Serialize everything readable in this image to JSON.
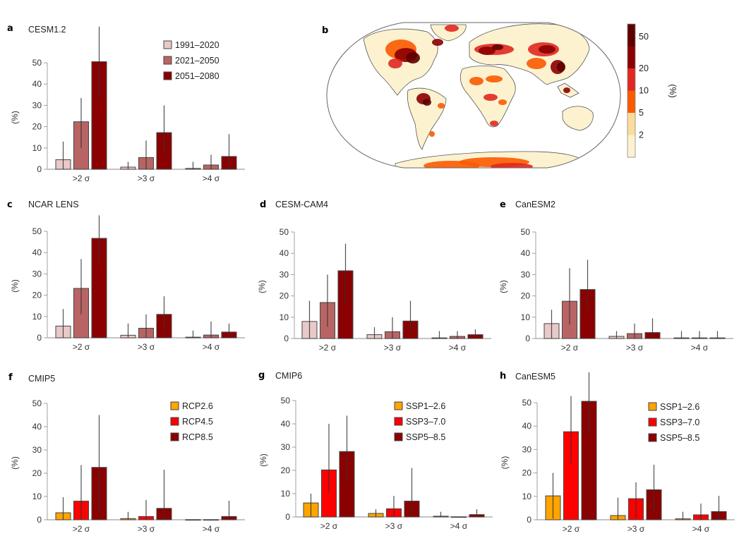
{
  "colors": {
    "period": [
      "#e8c9c9",
      "#b96464",
      "#8b0000"
    ],
    "scenario": [
      "#ffa500",
      "#ff0000",
      "#8b0000"
    ],
    "colorbar": [
      "#fdf2d0",
      "#fcdc9d",
      "#fb5a00",
      "#e0281f",
      "#8b0000",
      "#5e0000"
    ],
    "axis": "#a0a0a0",
    "errorbar": "#333333"
  },
  "chart_data": [
    {
      "id": "a",
      "type": "bar",
      "letter": "a",
      "title": "CESM1.2",
      "ylabel": "(%)",
      "ylim": [
        0,
        50
      ],
      "yticks": [
        0,
        10,
        20,
        30,
        40,
        50
      ],
      "categories": [
        ">2 σ",
        ">3 σ",
        ">4 σ"
      ],
      "palette": "period",
      "legend": "top-right",
      "series": [
        {
          "name": "1991–2020",
          "values": [
            4.5,
            1.0,
            0.4
          ],
          "err_low": [
            0,
            0,
            0
          ],
          "err_high": [
            13,
            3.5,
            3.5
          ]
        },
        {
          "name": "2021–2050",
          "values": [
            22.3,
            5.5,
            2.0
          ],
          "err_low": [
            10,
            0,
            0
          ],
          "err_high": [
            33.5,
            13.5,
            6.8
          ]
        },
        {
          "name": "2051–2080",
          "values": [
            50.5,
            17.2,
            6.0
          ],
          "err_low": [
            33,
            7,
            0
          ],
          "err_high": [
            67,
            30,
            16.5
          ]
        }
      ]
    },
    {
      "id": "c",
      "type": "bar",
      "letter": "c",
      "title": "NCAR LENS",
      "ylabel": "(%)",
      "ylim": [
        0,
        50
      ],
      "yticks": [
        0,
        10,
        20,
        30,
        40,
        50
      ],
      "categories": [
        ">2 σ",
        ">3 σ",
        ">4 σ"
      ],
      "palette": "period",
      "legend": "none",
      "series": [
        {
          "name": "1991–2020",
          "values": [
            5.5,
            1.2,
            0.3
          ],
          "err_low": [
            0,
            0,
            0
          ],
          "err_high": [
            13.5,
            6.7,
            3.4
          ]
        },
        {
          "name": "2021–2050",
          "values": [
            23.2,
            4.5,
            1.3
          ],
          "err_low": [
            11,
            0,
            0
          ],
          "err_high": [
            37,
            11,
            7.7
          ]
        },
        {
          "name": "2051–2080",
          "values": [
            46.7,
            11.0,
            2.7
          ],
          "err_low": [
            35.5,
            2,
            0
          ],
          "err_high": [
            57.5,
            19.5,
            6.7
          ]
        }
      ]
    },
    {
      "id": "d",
      "type": "bar",
      "letter": "d",
      "title": "CESM-CAM4",
      "ylabel": "(%)",
      "ylim": [
        0,
        50
      ],
      "yticks": [
        0,
        10,
        20,
        30,
        40,
        50
      ],
      "categories": [
        ">2 σ",
        ">3 σ",
        ">4 σ"
      ],
      "palette": "period",
      "legend": "none",
      "series": [
        {
          "name": "1991–2020",
          "values": [
            8.0,
            1.8,
            0.3
          ],
          "err_low": [
            0,
            0,
            0
          ],
          "err_high": [
            17.7,
            5.3,
            3.5
          ]
        },
        {
          "name": "2021–2050",
          "values": [
            16.9,
            3.2,
            1.0
          ],
          "err_low": [
            5.5,
            0,
            0
          ],
          "err_high": [
            30,
            10,
            3.5
          ]
        },
        {
          "name": "2051–2080",
          "values": [
            31.8,
            8.2,
            1.8
          ],
          "err_low": [
            15.5,
            3,
            0
          ],
          "err_high": [
            44.5,
            17.7,
            4.3
          ]
        }
      ]
    },
    {
      "id": "e",
      "type": "bar",
      "letter": "e",
      "title": "CanESM2",
      "ylabel": "(%)",
      "ylim": [
        0,
        50
      ],
      "yticks": [
        0,
        10,
        20,
        30,
        40,
        50
      ],
      "categories": [
        ">2 σ",
        ">3 σ",
        ">4 σ"
      ],
      "palette": "period",
      "legend": "none",
      "series": [
        {
          "name": "1991–2020",
          "values": [
            7.0,
            1.0,
            0.3
          ],
          "err_low": [
            0,
            0,
            0
          ],
          "err_high": [
            13.5,
            3.5,
            3.5
          ]
        },
        {
          "name": "2021–2050",
          "values": [
            17.5,
            2.3,
            0.3
          ],
          "err_low": [
            6.5,
            0,
            0
          ],
          "err_high": [
            33,
            7,
            3.5
          ]
        },
        {
          "name": "2051–2080",
          "values": [
            23.0,
            2.8,
            0.3
          ],
          "err_low": [
            13,
            0,
            0
          ],
          "err_high": [
            37,
            9.5,
            3.5
          ]
        }
      ]
    },
    {
      "id": "f",
      "type": "bar",
      "letter": "f",
      "title": "CMIP5",
      "ylabel": "(%)",
      "ylim": [
        0,
        50
      ],
      "yticks": [
        0,
        10,
        20,
        30,
        40,
        50
      ],
      "categories": [
        ">2 σ",
        ">3 σ",
        ">4 σ"
      ],
      "palette": "scenario",
      "legend": "top-right",
      "series": [
        {
          "name": "RCP2.6",
          "values": [
            3.0,
            0.5,
            0.05
          ],
          "err_low": [
            0,
            0,
            0
          ],
          "err_high": [
            9.7,
            3.4,
            0.05
          ]
        },
        {
          "name": "RCP4.5",
          "values": [
            8.0,
            1.4,
            0.05
          ],
          "err_low": [
            0,
            0,
            0
          ],
          "err_high": [
            23.5,
            8.5,
            0.05
          ]
        },
        {
          "name": "RCP8.5",
          "values": [
            22.5,
            4.9,
            1.4
          ],
          "err_low": [
            3,
            0,
            0
          ],
          "err_high": [
            45,
            21.5,
            8.2
          ]
        }
      ]
    },
    {
      "id": "g",
      "type": "bar",
      "letter": "g",
      "title": "CMIP6",
      "ylabel": "(%)",
      "ylim": [
        0,
        50
      ],
      "yticks": [
        0,
        10,
        20,
        30,
        40,
        50
      ],
      "categories": [
        ">2 σ",
        ">3 σ",
        ">4 σ"
      ],
      "palette": "scenario",
      "legend": "top-right",
      "series": [
        {
          "name": "SSP1–2.6",
          "values": [
            6.0,
            1.5,
            0.3
          ],
          "err_low": [
            0,
            0,
            0
          ],
          "err_high": [
            10,
            3.3,
            2.2
          ]
        },
        {
          "name": "SSP3–7.0",
          "values": [
            20.2,
            3.5,
            0.05
          ],
          "err_low": [
            11,
            0,
            0
          ],
          "err_high": [
            40,
            9,
            0.05
          ]
        },
        {
          "name": "SSP5–8.5",
          "values": [
            28.1,
            6.8,
            1.0
          ],
          "err_low": [
            14.5,
            1,
            0
          ],
          "err_high": [
            43.5,
            21,
            3.3
          ]
        }
      ]
    },
    {
      "id": "h",
      "type": "bar",
      "letter": "h",
      "title": "CanESM5",
      "ylabel": "(%)",
      "ylim": [
        0,
        50
      ],
      "yticks": [
        0,
        10,
        20,
        30,
        40,
        50
      ],
      "categories": [
        ">2 σ",
        ">3 σ",
        ">4 σ"
      ],
      "palette": "scenario",
      "legend": "top-right",
      "series": [
        {
          "name": "SSP1–2.6",
          "values": [
            10.2,
            1.8,
            0.4
          ],
          "err_low": [
            0.5,
            0,
            0
          ],
          "err_high": [
            20,
            9.4,
            3.4
          ]
        },
        {
          "name": "SSP3–7.0",
          "values": [
            37.6,
            9.0,
            2.1
          ],
          "err_low": [
            24,
            0.5,
            0
          ],
          "err_high": [
            52.8,
            16,
            6.9
          ]
        },
        {
          "name": "SSP5–8.5",
          "values": [
            50.6,
            12.8,
            3.5
          ],
          "err_low": [
            36.5,
            3,
            0
          ],
          "err_high": [
            63,
            23.5,
            10.2
          ]
        }
      ]
    },
    {
      "id": "b",
      "type": "heatmap",
      "letter": "b",
      "title": "",
      "description": "Global map of exceedance frequency (%)",
      "colorbar": {
        "label": "(%)",
        "ticks": [
          "2",
          "5",
          "10",
          "20",
          "50"
        ],
        "levels": 6
      }
    }
  ]
}
